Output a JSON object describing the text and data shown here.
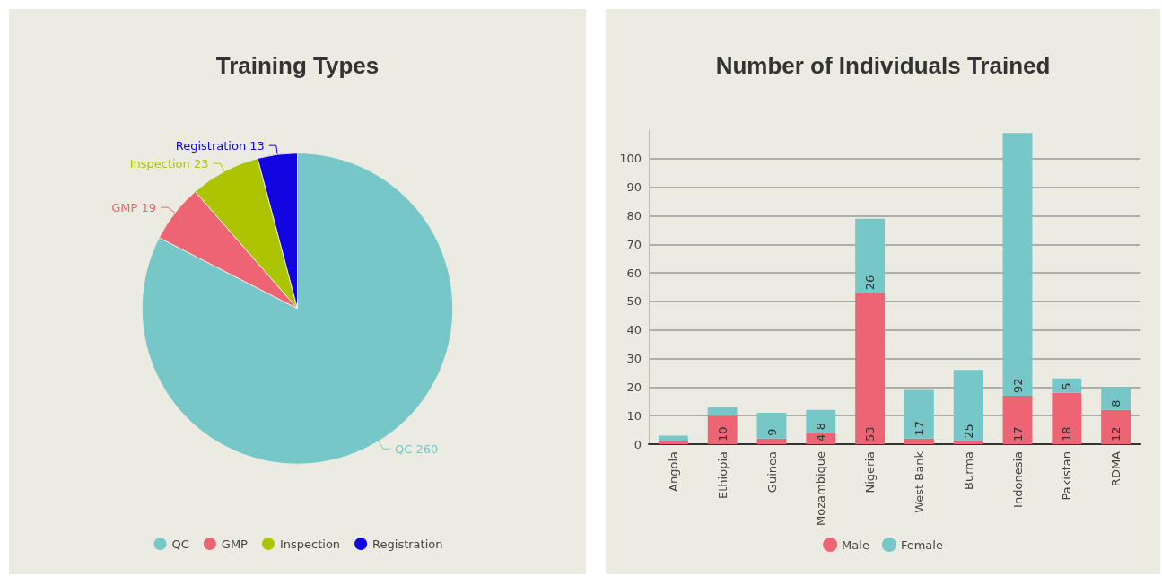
{
  "chart_data": [
    {
      "type": "pie",
      "title": "Training Types",
      "categories": [
        "QC",
        "GMP",
        "Inspection",
        "Registration"
      ],
      "values": [
        260,
        19,
        23,
        13
      ],
      "colors": [
        "#76c7c8",
        "#ed6575",
        "#adc500",
        "#1204e0"
      ],
      "data_labels": true,
      "legend": "bottom"
    },
    {
      "type": "bar",
      "title": "Number of Individuals Trained",
      "stacked": true,
      "categories": [
        "Angola",
        "Ethiopia",
        "Guinea",
        "Mozambique",
        "Nigeria",
        "West Bank",
        "Burma",
        "Indonesia",
        "Pakistan",
        "RDMA"
      ],
      "series": [
        {
          "name": "Male",
          "color": "#ed6575",
          "values": [
            1,
            10,
            2,
            4,
            53,
            2,
            1,
            17,
            18,
            12
          ],
          "value_labels": [
            null,
            "10",
            null,
            "4",
            "53",
            null,
            null,
            "17",
            "18",
            "12"
          ]
        },
        {
          "name": "Female",
          "color": "#76c7c8",
          "values": [
            2,
            3,
            9,
            8,
            26,
            17,
            25,
            92,
            5,
            8
          ],
          "value_labels": [
            null,
            null,
            "9",
            "8",
            "26",
            "17",
            "25",
            "92",
            "5",
            "8"
          ]
        }
      ],
      "ylim": [
        0,
        110
      ],
      "yticks": [
        0,
        10,
        20,
        30,
        40,
        50,
        60,
        70,
        80,
        90,
        100
      ],
      "grid": "y",
      "legend": "bottom"
    }
  ]
}
